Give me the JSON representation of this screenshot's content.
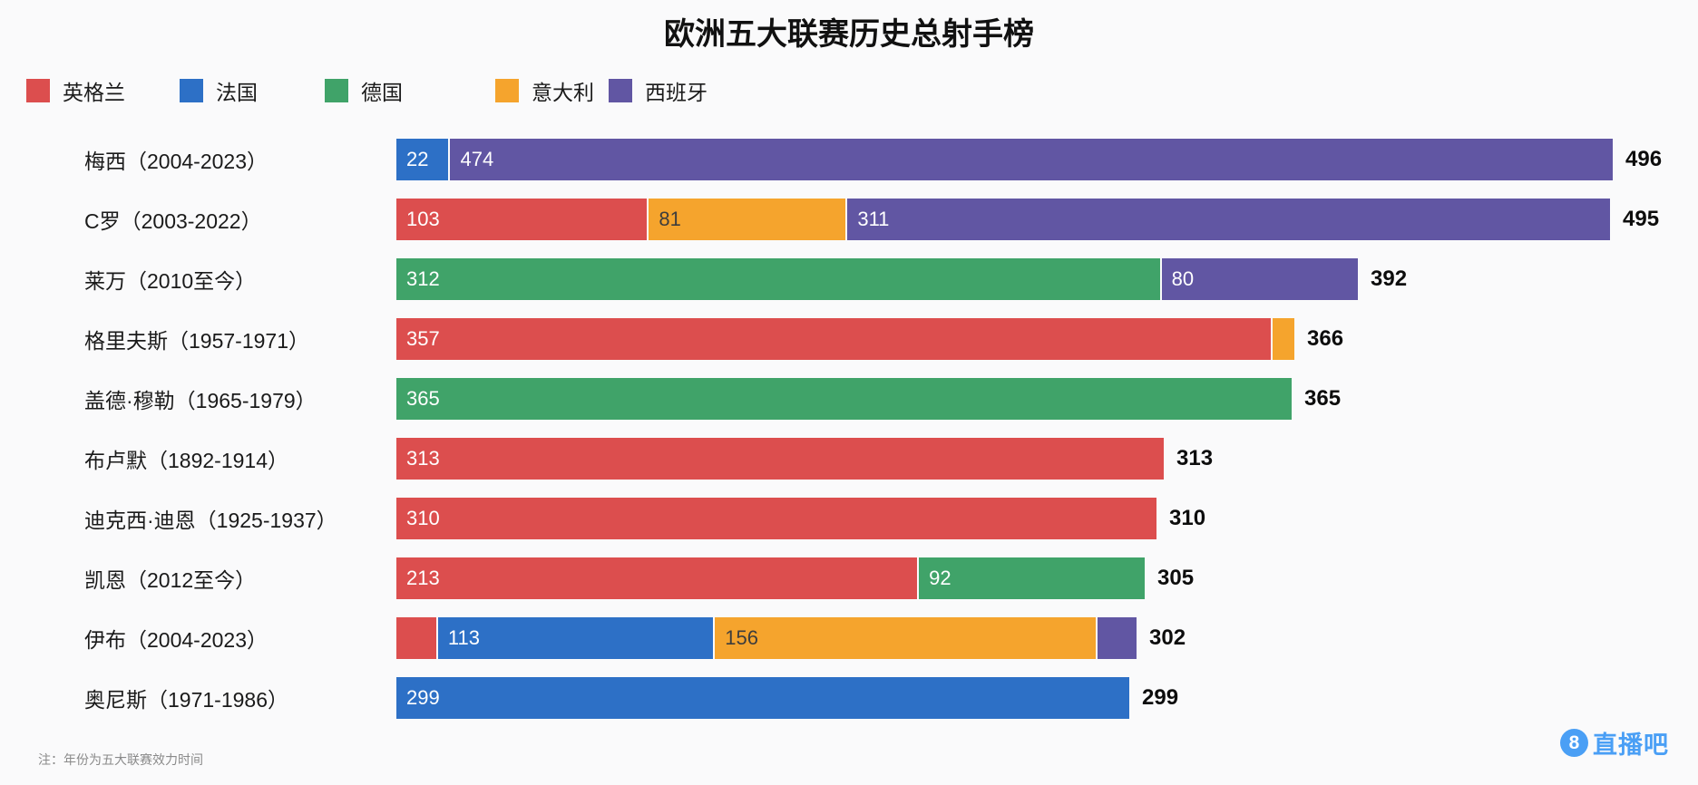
{
  "title": "欧洲五大联赛历史总射手榜",
  "note": "注：年份为五大联赛效力时间",
  "logo": {
    "badge": "8",
    "text": "直播吧"
  },
  "colors": {
    "england": "#dc4e4e",
    "france": "#2d70c6",
    "germany": "#40a369",
    "italy": "#f5a42d",
    "spain": "#6156a3",
    "background": "#fafafb",
    "bar_label_light": "#ffffff",
    "bar_label_dark": "#3d3d3d",
    "total_label": "#0d0d0d",
    "note_gray": "#8a8a8a",
    "logo_blue": "#4a9ff5"
  },
  "legend": [
    {
      "label": "英格兰",
      "color_key": "england"
    },
    {
      "label": "法国",
      "color_key": "france"
    },
    {
      "label": "德国",
      "color_key": "germany"
    },
    {
      "label": "意大利",
      "color_key": "italy"
    },
    {
      "label": "西班牙",
      "color_key": "spain"
    }
  ],
  "chart_data": {
    "type": "bar",
    "orientation": "horizontal",
    "title": "欧洲五大联赛历史总射手榜",
    "xlabel": "",
    "ylabel": "",
    "value_unit": "进球",
    "axis_max": 496,
    "legend_position": "top-left",
    "grid": false,
    "legend_entries": [
      "英格兰",
      "法国",
      "德国",
      "意大利",
      "西班牙"
    ],
    "rows": [
      {
        "label": "梅西（2004-2023）",
        "total": 496,
        "segments": [
          {
            "country": "法国",
            "color_key": "france",
            "value": 22,
            "value_label": "22"
          },
          {
            "country": "西班牙",
            "color_key": "spain",
            "value": 474,
            "value_label": "474"
          }
        ]
      },
      {
        "label": "C罗（2003-2022）",
        "total": 495,
        "segments": [
          {
            "country": "英格兰",
            "color_key": "england",
            "value": 103,
            "value_label": "103"
          },
          {
            "country": "意大利",
            "color_key": "italy",
            "value": 81,
            "value_label": "81"
          },
          {
            "country": "西班牙",
            "color_key": "spain",
            "value": 311,
            "value_label": "311"
          }
        ]
      },
      {
        "label": "莱万（2010至今）",
        "total": 392,
        "segments": [
          {
            "country": "德国",
            "color_key": "germany",
            "value": 312,
            "value_label": "312"
          },
          {
            "country": "西班牙",
            "color_key": "spain",
            "value": 80,
            "value_label": "80"
          }
        ]
      },
      {
        "label": "格里夫斯（1957-1971）",
        "total": 366,
        "segments": [
          {
            "country": "英格兰",
            "color_key": "england",
            "value": 357,
            "value_label": "357"
          },
          {
            "country": "意大利",
            "color_key": "italy",
            "value": 9,
            "value_label": ""
          }
        ]
      },
      {
        "label": "盖德·穆勒（1965-1979）",
        "total": 365,
        "segments": [
          {
            "country": "德国",
            "color_key": "germany",
            "value": 365,
            "value_label": "365"
          }
        ]
      },
      {
        "label": "布卢默（1892-1914）",
        "total": 313,
        "segments": [
          {
            "country": "英格兰",
            "color_key": "england",
            "value": 313,
            "value_label": "313"
          }
        ]
      },
      {
        "label": "迪克西·迪恩（1925-1937）",
        "total": 310,
        "segments": [
          {
            "country": "英格兰",
            "color_key": "england",
            "value": 310,
            "value_label": "310"
          }
        ]
      },
      {
        "label": "凯恩（2012至今）",
        "total": 305,
        "segments": [
          {
            "country": "英格兰",
            "color_key": "england",
            "value": 213,
            "value_label": "213"
          },
          {
            "country": "德国",
            "color_key": "germany",
            "value": 92,
            "value_label": "92"
          }
        ]
      },
      {
        "label": "伊布（2004-2023）",
        "total": 302,
        "segments": [
          {
            "country": "英格兰",
            "color_key": "england",
            "value": 17,
            "value_label": ""
          },
          {
            "country": "法国",
            "color_key": "france",
            "value": 113,
            "value_label": "113"
          },
          {
            "country": "意大利",
            "color_key": "italy",
            "value": 156,
            "value_label": "156"
          },
          {
            "country": "西班牙",
            "color_key": "spain",
            "value": 16,
            "value_label": ""
          }
        ]
      },
      {
        "label": "奥尼斯（1971-1986）",
        "total": 299,
        "segments": [
          {
            "country": "法国",
            "color_key": "france",
            "value": 299,
            "value_label": "299"
          }
        ]
      }
    ]
  }
}
